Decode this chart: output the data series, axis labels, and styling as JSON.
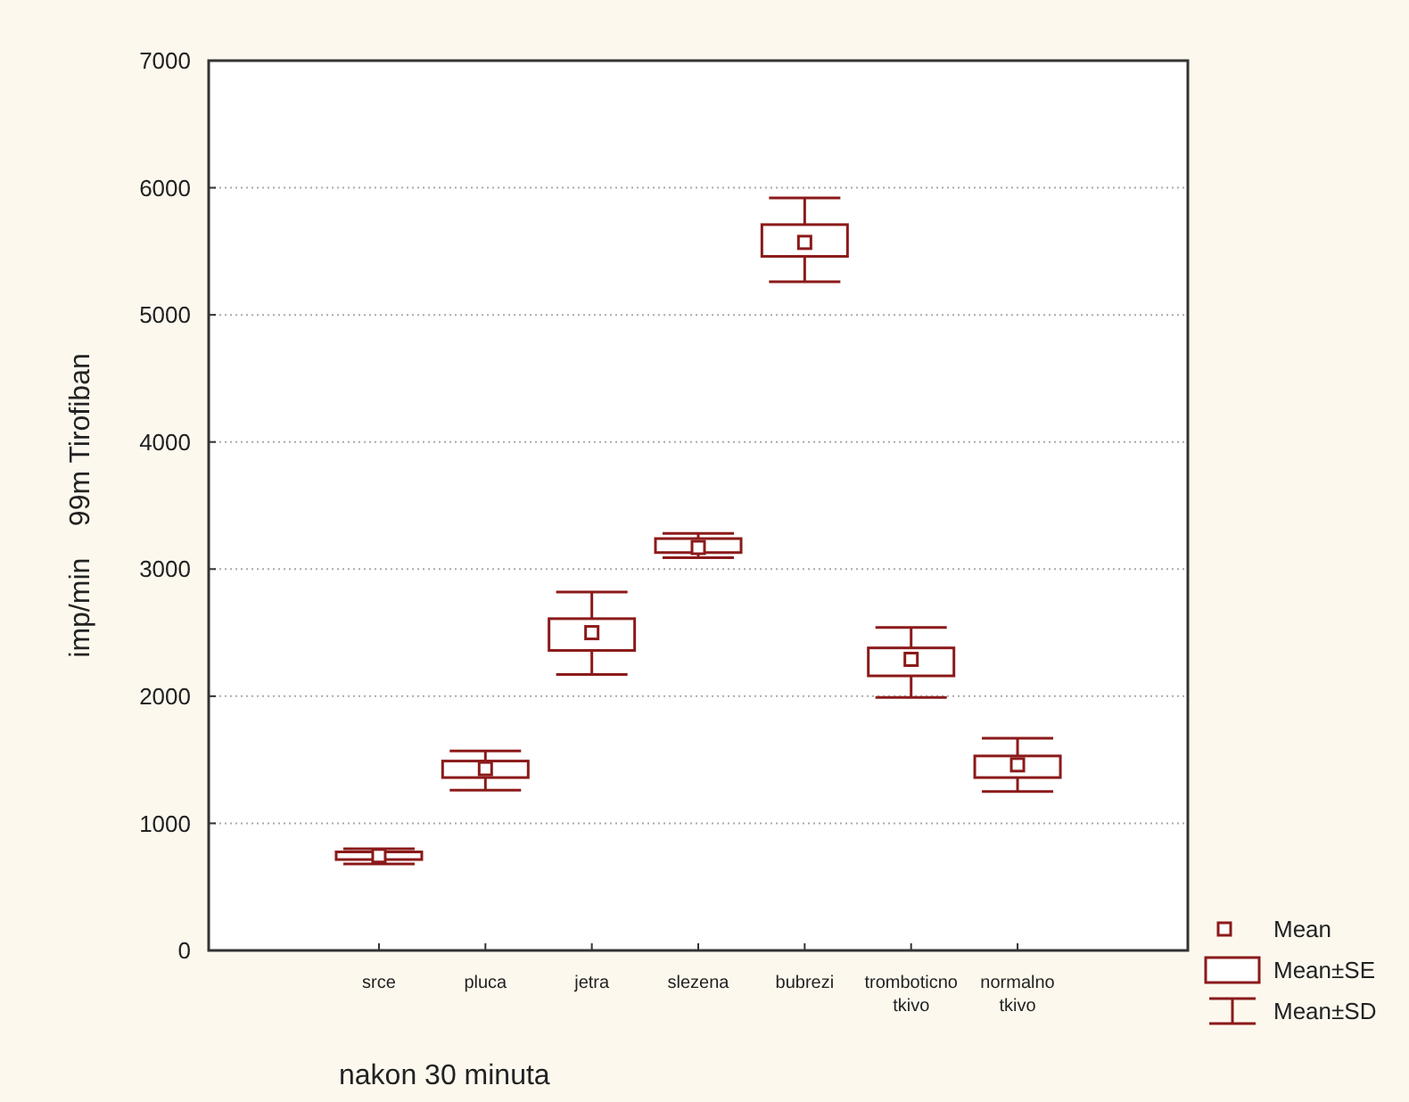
{
  "chart_data": {
    "type": "box",
    "xlabel": "nakon 30 minuta",
    "ylabel": "imp/min    99m Tirofiban",
    "categories": [
      "srce",
      "pluca",
      "jetra",
      "slezena",
      "bubrezi",
      "tromboticno tkivo",
      "normalno tkivo"
    ],
    "boxes": [
      {
        "low": 680,
        "q1": 715,
        "q3": 775,
        "high": 800,
        "mean": 745
      },
      {
        "low": 1260,
        "q1": 1360,
        "q3": 1490,
        "high": 1570,
        "mean": 1430
      },
      {
        "low": 2170,
        "q1": 2360,
        "q3": 2610,
        "high": 2820,
        "mean": 2500
      },
      {
        "low": 3090,
        "q1": 3130,
        "q3": 3240,
        "high": 3280,
        "mean": 3170
      },
      {
        "low": 5260,
        "q1": 5460,
        "q3": 5710,
        "high": 5920,
        "mean": 5570
      },
      {
        "low": 1990,
        "q1": 2160,
        "q3": 2380,
        "high": 2540,
        "mean": 2290
      },
      {
        "low": 1250,
        "q1": 1360,
        "q3": 1530,
        "high": 1670,
        "mean": 1460
      }
    ],
    "color": "#8b1a1a",
    "ylim": [
      0,
      7000
    ],
    "yticks": [
      0,
      1000,
      2000,
      3000,
      4000,
      5000,
      6000,
      7000
    ],
    "grid": "y",
    "marker": "square",
    "annotations": [
      "Mean",
      "Mean±SE",
      "Mean±SD"
    ]
  }
}
